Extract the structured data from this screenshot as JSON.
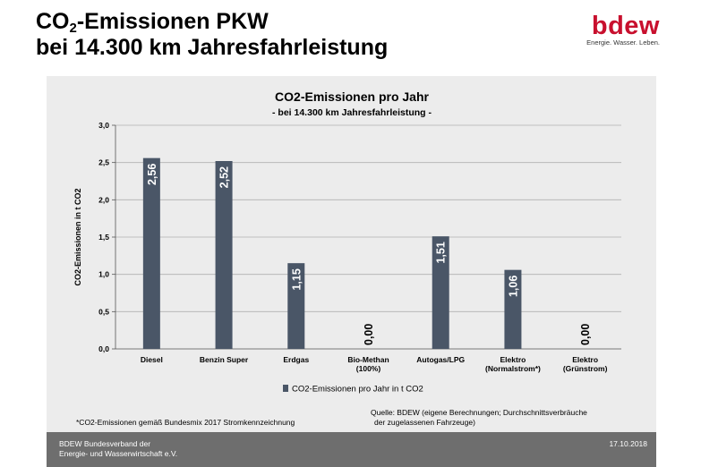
{
  "slide": {
    "title_line1_pre": "CO",
    "title_line1_sub": "2",
    "title_line1_post": "-Emissionen PKW",
    "title_line2": "bei 14.300 km Jahresfahrleistung"
  },
  "logo": {
    "word": "bdew",
    "tagline": "Energie. Wasser. Leben."
  },
  "footnote": "*CO2-Emissionen gemäß Bundesmix 2017 Stromkennzeichnung",
  "source": {
    "line1": "Quelle: BDEW (eigene Berechnungen; Durchschnittsverbräuche",
    "line2": "der zugelassenen Fahrzeuge)"
  },
  "footer": {
    "org_line1": "BDEW Bundesverband der",
    "org_line2": "Energie- und Wasserwirtschaft e.V.",
    "date": "17.10.2018"
  },
  "colors": {
    "bar": "#4a5667",
    "brand": "#c8102e",
    "panel": "#ececec",
    "footer": "#6e6e6e"
  },
  "chart_data": {
    "type": "bar",
    "title": "CO2-Emissionen pro Jahr",
    "subtitle": "- bei 14.300 km Jahresfahrleistung -",
    "ylabel": "CO2-Emissionen in t CO2",
    "ylim": [
      0,
      3.0
    ],
    "yticks": [
      "0,0",
      "0,5",
      "1,0",
      "1,5",
      "2,0",
      "2,5",
      "3,0"
    ],
    "categories": [
      [
        "Diesel"
      ],
      [
        "Benzin Super"
      ],
      [
        "Erdgas"
      ],
      [
        "Bio-Methan",
        "(100%)"
      ],
      [
        "Autogas/LPG"
      ],
      [
        "Elektro",
        "(Normalstrom*)"
      ],
      [
        "Elektro",
        "(Grünstrom)"
      ]
    ],
    "series": [
      {
        "name": "CO2-Emissionen pro Jahr in t CO2",
        "values": [
          2.56,
          2.52,
          1.15,
          0.0,
          1.51,
          1.06,
          0.0
        ],
        "labels": [
          "2,56",
          "2,52",
          "1,15",
          "0,00",
          "1,51",
          "1,06",
          "0,00"
        ]
      }
    ],
    "grid": true,
    "legend": "bottom"
  }
}
